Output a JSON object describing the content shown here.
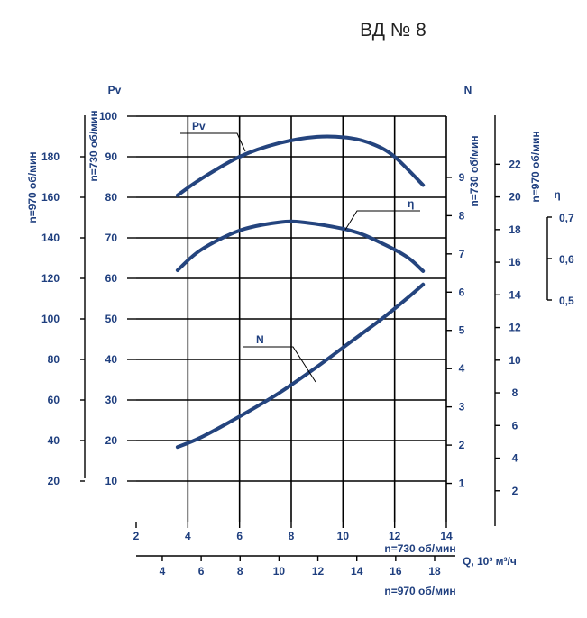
{
  "chart_data": {
    "type": "line",
    "title": "ВД № 8",
    "x_axes": [
      {
        "label": "n=730 об/мин",
        "ticks": [
          "2",
          "4",
          "6",
          "8",
          "10",
          "12",
          "14"
        ],
        "range": [
          2,
          14
        ]
      },
      {
        "label": "n=970 об/мин",
        "ticks": [
          "4",
          "6",
          "8",
          "10",
          "12",
          "14",
          "16",
          "18"
        ],
        "range": [
          2.66,
          18.6
        ]
      }
    ],
    "x_quantity_label": "Q, 10³ м³/ч",
    "y_axes": {
      "pv_970": {
        "label": "n=970 об/мин",
        "ticks": [
          "20",
          "40",
          "60",
          "80",
          "100",
          "120",
          "140",
          "160",
          "180"
        ],
        "range": [
          0,
          200
        ]
      },
      "pv_730": {
        "header": "Pv",
        "label": "n=730 об/мин",
        "ticks": [
          "10",
          "20",
          "30",
          "40",
          "50",
          "60",
          "70",
          "80",
          "90",
          "100"
        ],
        "range": [
          0,
          100
        ]
      },
      "n_730": {
        "header": "N",
        "label": "n=730 об/мин",
        "ticks": [
          "1",
          "2",
          "3",
          "4",
          "5",
          "6",
          "7",
          "8",
          "9"
        ],
        "range": [
          0,
          10.6
        ]
      },
      "n_970": {
        "label": "n=970 об/мин",
        "ticks": [
          "2",
          "4",
          "6",
          "8",
          "10",
          "12",
          "14",
          "16",
          "18",
          "20",
          "22"
        ],
        "range": [
          0,
          25
        ]
      },
      "eta": {
        "header": "η",
        "ticks": [
          "0,5",
          "0,6",
          "0,7"
        ],
        "range": [
          0.5,
          0.7
        ]
      }
    },
    "series": [
      {
        "name": "Pv",
        "axis": "pv_730",
        "x": [
          3.6,
          4.5,
          6,
          7.5,
          9,
          10.3,
          11.2,
          12,
          13.1
        ],
        "y": [
          80.5,
          84.5,
          90,
          93.3,
          94.9,
          94.6,
          93,
          90,
          83
        ]
      },
      {
        "name": "η",
        "axis": "pv_730",
        "x": [
          3.6,
          4.5,
          6,
          7.5,
          8.5,
          10.3,
          11.5,
          12.5,
          13.1
        ],
        "y": [
          62,
          67,
          71.8,
          73.8,
          73.8,
          71.8,
          68.7,
          65.2,
          61.8
        ]
      },
      {
        "name": "N",
        "axis": "n_730",
        "x": [
          3.6,
          4.5,
          6,
          7.5,
          9,
          10.3,
          11.5,
          12.5,
          13.1
        ],
        "y": [
          1.95,
          2.2,
          2.75,
          3.35,
          4.05,
          4.7,
          5.3,
          5.85,
          6.2
        ]
      }
    ],
    "grid": true,
    "colors": {
      "curve": "#24447e",
      "grid": "#000000",
      "text": "#1f3f7f"
    }
  }
}
